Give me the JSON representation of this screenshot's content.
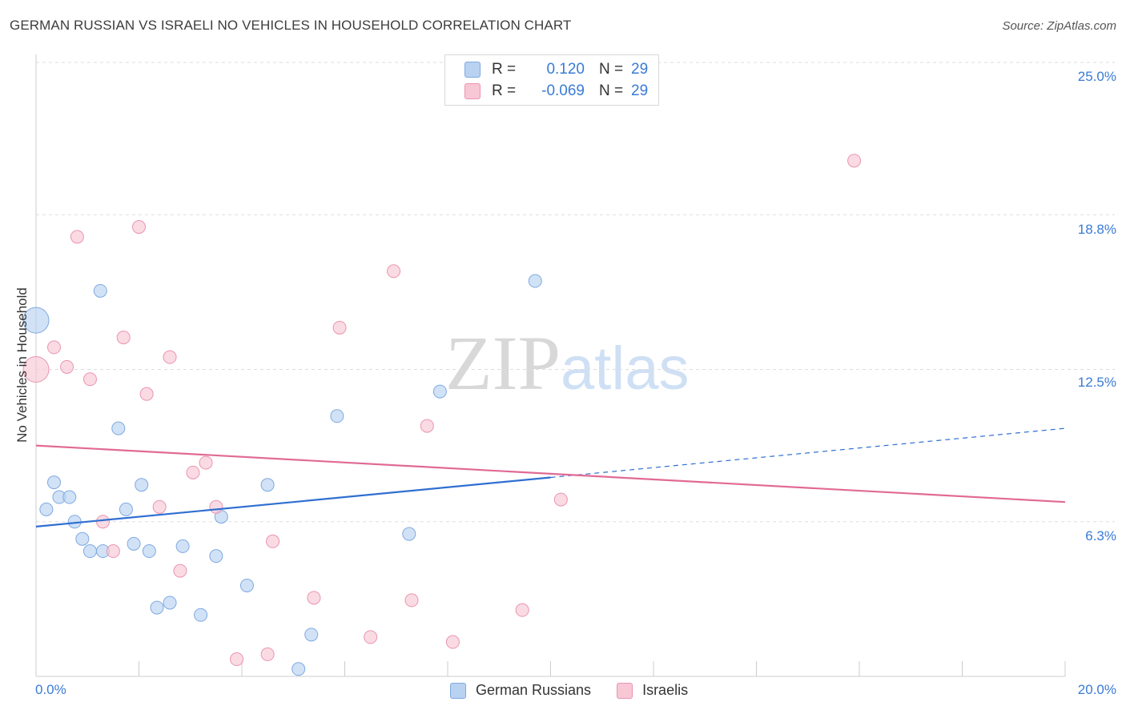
{
  "title": "GERMAN RUSSIAN VS ISRAELI NO VEHICLES IN HOUSEHOLD CORRELATION CHART",
  "source": "Source: ZipAtlas.com",
  "watermark": {
    "zip": "ZIP",
    "atlas": "atlas"
  },
  "legend": {
    "series1": {
      "r_label": "R =",
      "r_value": "0.120",
      "n_label": "N =",
      "n_value": "29"
    },
    "series2": {
      "r_label": "R =",
      "r_value": "-0.069",
      "n_label": "N =",
      "n_value": "29"
    }
  },
  "bottom_legend": {
    "series1": "German Russians",
    "series2": "Israelis"
  },
  "colors": {
    "blue_fill": "#b9d2f2",
    "blue_stroke": "#7fa9e0",
    "blue_line": "#2f6fd1",
    "pink_fill": "#f8c7d6",
    "pink_stroke": "#ea94b0",
    "pink_line": "#e16a95",
    "grid": "#dddddd",
    "tick_label": "#3a7bd5"
  },
  "chart_data": {
    "type": "scatter",
    "title": "GERMAN RUSSIAN VS ISRAELI NO VEHICLES IN HOUSEHOLD CORRELATION CHART",
    "xlabel": "",
    "ylabel": "No Vehicles in Household",
    "xlim": [
      0,
      20
    ],
    "ylim": [
      0,
      25
    ],
    "x_tick_labels": [
      "0.0%",
      "20.0%"
    ],
    "y_ticks": [
      6.3,
      12.5,
      18.8,
      25.0
    ],
    "y_tick_labels": [
      "6.3%",
      "12.5%",
      "18.8%",
      "25.0%"
    ],
    "grid": true,
    "legend_position": "top-center",
    "series": [
      {
        "name": "German Russians",
        "r": 0.12,
        "n": 29,
        "points": [
          {
            "x": 0.0,
            "y": 14.5,
            "s": "large"
          },
          {
            "x": 0.2,
            "y": 6.8
          },
          {
            "x": 0.35,
            "y": 7.9
          },
          {
            "x": 0.45,
            "y": 7.3
          },
          {
            "x": 0.65,
            "y": 7.3
          },
          {
            "x": 0.75,
            "y": 6.3
          },
          {
            "x": 0.9,
            "y": 5.6
          },
          {
            "x": 1.05,
            "y": 5.1
          },
          {
            "x": 1.25,
            "y": 15.7
          },
          {
            "x": 1.3,
            "y": 5.1
          },
          {
            "x": 1.6,
            "y": 10.1
          },
          {
            "x": 1.75,
            "y": 6.8
          },
          {
            "x": 1.9,
            "y": 5.4
          },
          {
            "x": 2.05,
            "y": 7.8
          },
          {
            "x": 2.2,
            "y": 5.1
          },
          {
            "x": 2.35,
            "y": 2.8
          },
          {
            "x": 2.6,
            "y": 3.0
          },
          {
            "x": 2.85,
            "y": 5.3
          },
          {
            "x": 3.2,
            "y": 2.5
          },
          {
            "x": 3.5,
            "y": 4.9
          },
          {
            "x": 3.6,
            "y": 6.5
          },
          {
            "x": 4.1,
            "y": 3.7
          },
          {
            "x": 4.5,
            "y": 7.8
          },
          {
            "x": 5.1,
            "y": 0.3
          },
          {
            "x": 5.35,
            "y": 1.7
          },
          {
            "x": 5.85,
            "y": 10.6
          },
          {
            "x": 7.25,
            "y": 5.8
          },
          {
            "x": 7.85,
            "y": 11.6
          },
          {
            "x": 9.7,
            "y": 16.1
          }
        ],
        "trend": {
          "x0": 0,
          "y0": 6.1,
          "x1": 20,
          "y1": 10.1,
          "solid_until_x": 10
        }
      },
      {
        "name": "Israelis",
        "r": -0.069,
        "n": 29,
        "points": [
          {
            "x": 0.0,
            "y": 12.5,
            "s": "large"
          },
          {
            "x": 0.35,
            "y": 13.4
          },
          {
            "x": 0.6,
            "y": 12.6
          },
          {
            "x": 0.8,
            "y": 17.9
          },
          {
            "x": 1.05,
            "y": 12.1
          },
          {
            "x": 1.3,
            "y": 6.3
          },
          {
            "x": 1.5,
            "y": 5.1
          },
          {
            "x": 1.7,
            "y": 13.8
          },
          {
            "x": 2.0,
            "y": 18.3
          },
          {
            "x": 2.15,
            "y": 11.5
          },
          {
            "x": 2.4,
            "y": 6.9
          },
          {
            "x": 2.6,
            "y": 13.0
          },
          {
            "x": 2.8,
            "y": 4.3
          },
          {
            "x": 3.05,
            "y": 8.3
          },
          {
            "x": 3.3,
            "y": 8.7
          },
          {
            "x": 3.5,
            "y": 6.9
          },
          {
            "x": 3.9,
            "y": 0.7
          },
          {
            "x": 4.5,
            "y": 0.9
          },
          {
            "x": 4.6,
            "y": 5.5
          },
          {
            "x": 5.4,
            "y": 3.2
          },
          {
            "x": 5.9,
            "y": 14.2
          },
          {
            "x": 6.5,
            "y": 1.6
          },
          {
            "x": 6.95,
            "y": 16.5
          },
          {
            "x": 7.3,
            "y": 3.1
          },
          {
            "x": 7.6,
            "y": 10.2
          },
          {
            "x": 8.1,
            "y": 1.4
          },
          {
            "x": 9.45,
            "y": 2.7
          },
          {
            "x": 10.2,
            "y": 7.2
          },
          {
            "x": 15.9,
            "y": 21.0
          }
        ],
        "trend": {
          "x0": 0,
          "y0": 9.4,
          "x1": 20,
          "y1": 7.1
        }
      }
    ]
  }
}
